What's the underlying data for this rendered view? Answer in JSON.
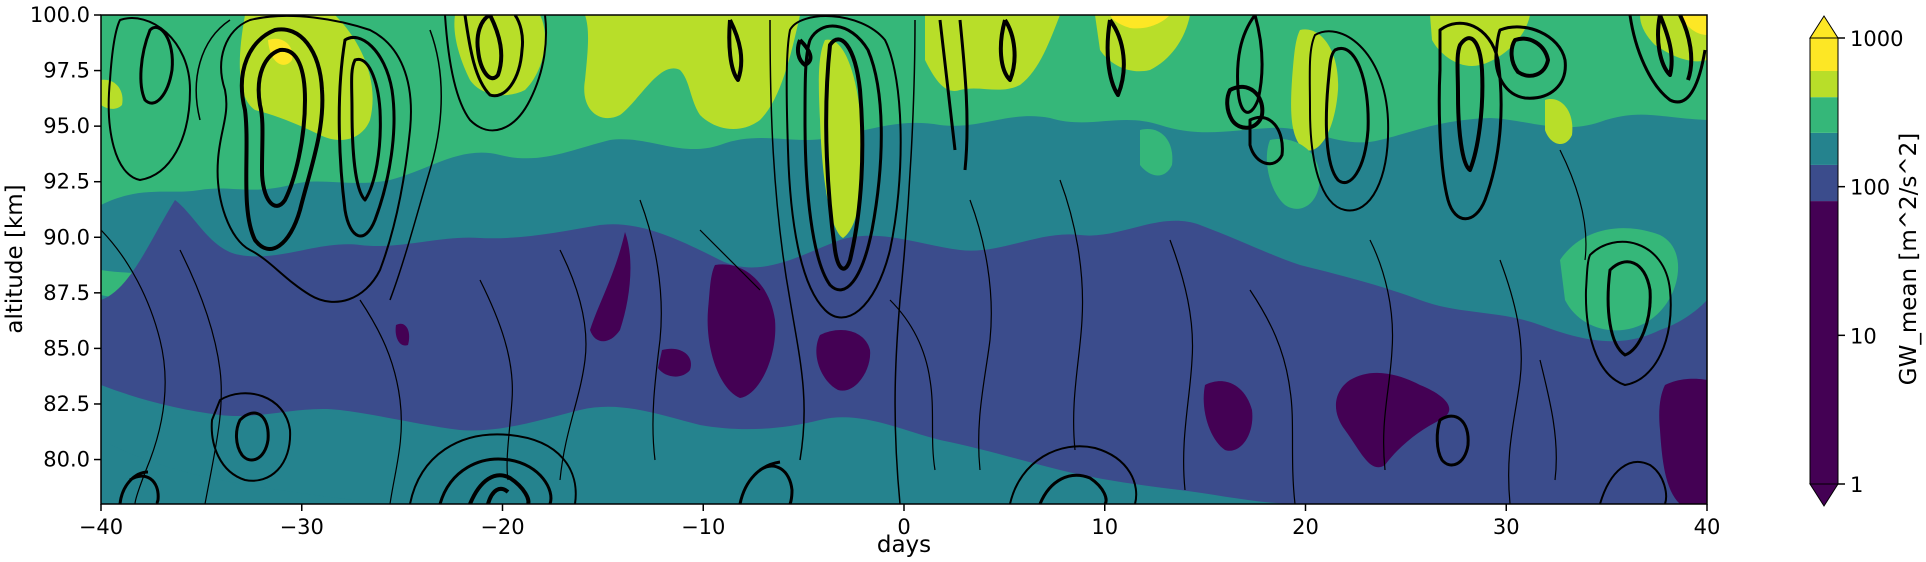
{
  "chart_data": {
    "type": "contour",
    "xlabel": "days",
    "ylabel": "altitude [km]",
    "xlim": [
      -40,
      40
    ],
    "ylim": [
      78,
      100
    ],
    "xticks": [
      -40,
      -30,
      -20,
      -10,
      0,
      10,
      20,
      30,
      40
    ],
    "xtick_labels": [
      "−40",
      "−30",
      "−20",
      "−10",
      "0",
      "10",
      "20",
      "30",
      "40"
    ],
    "yticks": [
      80.0,
      82.5,
      85.0,
      87.5,
      90.0,
      92.5,
      95.0,
      97.5,
      100.0
    ],
    "ytick_labels": [
      "80.0",
      "82.5",
      "85.0",
      "87.5",
      "90.0",
      "92.5",
      "95.0",
      "97.5",
      "100.0"
    ],
    "colorbar": {
      "label": "GW_mean [m^2/s^2]",
      "scale": "log",
      "range": [
        1,
        1000
      ],
      "ticks": [
        1,
        10,
        100,
        1000
      ],
      "tick_labels": [
        "1",
        "10",
        "100",
        "1000"
      ],
      "extend": "both",
      "levels": [
        {
          "from": 1,
          "to": 80,
          "color": "#440154"
        },
        {
          "from": 80,
          "to": 140,
          "color": "#3b4c8c"
        },
        {
          "from": 140,
          "to": 230,
          "color": "#25838e"
        },
        {
          "from": 230,
          "to": 400,
          "color": "#35b779"
        },
        {
          "from": 400,
          "to": 600,
          "color": "#b8de29"
        },
        {
          "from": 600,
          "to": 1000,
          "color": "#fde725"
        }
      ]
    },
    "overlay": "black line contours of a second field"
  }
}
